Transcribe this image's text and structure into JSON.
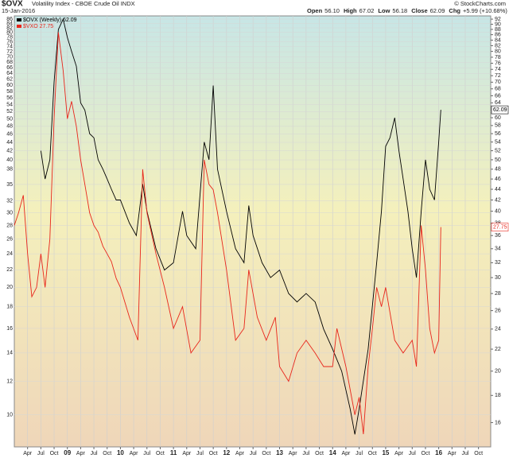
{
  "header": {
    "symbol": "$OVX",
    "description": "Volatility Index - CBOE Crude Oil INDX",
    "date": "15-Jan-2016",
    "quote": [
      {
        "label": "Open",
        "value": "56.10"
      },
      {
        "label": "High",
        "value": "67.02"
      },
      {
        "label": "Low",
        "value": "56.18"
      },
      {
        "label": "Close",
        "value": "62.09"
      },
      {
        "label": "Chg",
        "value": "+5.99 (+10.68%)"
      }
    ],
    "source": "© StockCharts.com"
  },
  "chart_data": {
    "type": "line",
    "log_scale": true,
    "grid": true,
    "legend": "top-left",
    "xlim": [
      2008,
      2016.98
    ],
    "xticks": [
      {
        "value": 2008.25,
        "label": "Apr"
      },
      {
        "value": 2008.5,
        "label": "Jul"
      },
      {
        "value": 2008.75,
        "label": "Oct"
      },
      {
        "value": 2009,
        "label": "09"
      },
      {
        "value": 2009.25,
        "label": "Apr"
      },
      {
        "value": 2009.5,
        "label": "Jul"
      },
      {
        "value": 2009.75,
        "label": "Oct"
      },
      {
        "value": 2010,
        "label": "10"
      },
      {
        "value": 2010.25,
        "label": "Apr"
      },
      {
        "value": 2010.5,
        "label": "Jul"
      },
      {
        "value": 2010.75,
        "label": "Oct"
      },
      {
        "value": 2011,
        "label": "11"
      },
      {
        "value": 2011.25,
        "label": "Apr"
      },
      {
        "value": 2011.5,
        "label": "Jul"
      },
      {
        "value": 2011.75,
        "label": "Oct"
      },
      {
        "value": 2012,
        "label": "12"
      },
      {
        "value": 2012.25,
        "label": "Apr"
      },
      {
        "value": 2012.5,
        "label": "Jul"
      },
      {
        "value": 2012.75,
        "label": "Oct"
      },
      {
        "value": 2013,
        "label": "13"
      },
      {
        "value": 2013.25,
        "label": "Apr"
      },
      {
        "value": 2013.5,
        "label": "Jul"
      },
      {
        "value": 2013.75,
        "label": "Oct"
      },
      {
        "value": 2014,
        "label": "14"
      },
      {
        "value": 2014.25,
        "label": "Apr"
      },
      {
        "value": 2014.5,
        "label": "Jul"
      },
      {
        "value": 2014.75,
        "label": "Oct"
      },
      {
        "value": 2015,
        "label": "15"
      },
      {
        "value": 2015.25,
        "label": "Apr"
      },
      {
        "value": 2015.5,
        "label": "Jul"
      },
      {
        "value": 2015.75,
        "label": "Oct"
      },
      {
        "value": 2016,
        "label": "16"
      },
      {
        "value": 2016.25,
        "label": "Apr"
      },
      {
        "value": 2016.5,
        "label": "Jul"
      },
      {
        "value": 2016.75,
        "label": "Oct"
      }
    ],
    "ylim": [
      8.4,
      87.5
    ],
    "yticks": [
      86,
      84,
      82,
      80,
      78,
      76,
      74,
      72,
      70,
      68,
      66,
      64,
      62,
      60,
      58,
      56,
      54,
      52,
      50,
      48,
      46,
      44,
      42,
      40,
      38,
      35,
      32,
      30,
      28,
      26,
      24,
      22,
      20,
      18,
      16,
      14,
      12,
      10
    ],
    "y2lim": [
      14.4,
      93.3
    ],
    "y2ticks": [
      92,
      90,
      88,
      86,
      84,
      82,
      80,
      78,
      76,
      74,
      72,
      70,
      68,
      66,
      64,
      60,
      58,
      56,
      54,
      52,
      50,
      48,
      46,
      44,
      42,
      40,
      38,
      36,
      34,
      32,
      30,
      28,
      26,
      24,
      22,
      20,
      18,
      16
    ],
    "series": [
      {
        "name": "$OVX (Weekly) 62.09",
        "color": "#000000",
        "axis": "y2",
        "x": [
          2008.5,
          2008.58,
          2008.67,
          2008.75,
          2008.83,
          2008.92,
          2009.0,
          2009.08,
          2009.17,
          2009.25,
          2009.33,
          2009.42,
          2009.5,
          2009.58,
          2009.67,
          2009.75,
          2009.83,
          2009.92,
          2010.0,
          2010.17,
          2010.3,
          2010.42,
          2010.5,
          2010.67,
          2010.83,
          2011.0,
          2011.17,
          2011.25,
          2011.42,
          2011.58,
          2011.67,
          2011.75,
          2011.83,
          2012.0,
          2012.17,
          2012.33,
          2012.42,
          2012.5,
          2012.67,
          2012.83,
          2013.0,
          2013.17,
          2013.33,
          2013.5,
          2013.67,
          2013.83,
          2014.0,
          2014.17,
          2014.33,
          2014.42,
          2014.5,
          2014.67,
          2014.83,
          2014.92,
          2015.0,
          2015.08,
          2015.17,
          2015.25,
          2015.33,
          2015.42,
          2015.5,
          2015.58,
          2015.67,
          2015.75,
          2015.83,
          2015.92,
          2016.0,
          2016.04
        ],
        "values": [
          52,
          46,
          50,
          70,
          88,
          92,
          85,
          80,
          75,
          64,
          62,
          56,
          55,
          50,
          48,
          46,
          44,
          42,
          42,
          38,
          36,
          45,
          40,
          34,
          31,
          32,
          40,
          36,
          34,
          54,
          50,
          69,
          48,
          40,
          34,
          32,
          41,
          36,
          32,
          30,
          31,
          28,
          27,
          28,
          27,
          24,
          22,
          20,
          17,
          15.2,
          17,
          22,
          32,
          40,
          53,
          55,
          60,
          52,
          46,
          40,
          34,
          30,
          40,
          50,
          44,
          42,
          54,
          62.09
        ]
      },
      {
        "name": "$VXO 27.75",
        "color": "#e8251b",
        "axis": "y",
        "x": [
          2008.0,
          2008.08,
          2008.17,
          2008.25,
          2008.33,
          2008.42,
          2008.5,
          2008.58,
          2008.67,
          2008.75,
          2008.83,
          2008.92,
          2009.0,
          2009.08,
          2009.17,
          2009.25,
          2009.33,
          2009.42,
          2009.5,
          2009.58,
          2009.67,
          2009.75,
          2009.83,
          2009.92,
          2010.0,
          2010.17,
          2010.33,
          2010.42,
          2010.5,
          2010.67,
          2010.83,
          2011.0,
          2011.17,
          2011.33,
          2011.5,
          2011.58,
          2011.67,
          2011.75,
          2011.83,
          2012.0,
          2012.17,
          2012.33,
          2012.42,
          2012.58,
          2012.75,
          2012.92,
          2013.0,
          2013.17,
          2013.33,
          2013.5,
          2013.67,
          2013.83,
          2014.0,
          2014.08,
          2014.25,
          2014.42,
          2014.5,
          2014.58,
          2014.67,
          2014.75,
          2014.83,
          2014.92,
          2015.0,
          2015.17,
          2015.33,
          2015.5,
          2015.58,
          2015.67,
          2015.75,
          2015.83,
          2015.92,
          2016.0,
          2016.04
        ],
        "values": [
          28,
          30,
          33,
          24,
          19,
          20,
          24,
          20,
          26,
          50,
          80,
          65,
          50,
          55,
          48,
          40,
          35,
          30,
          28,
          27,
          25,
          24,
          23,
          21,
          20,
          17,
          15,
          38,
          30,
          24,
          20,
          16,
          18,
          14,
          15,
          40,
          35,
          34,
          30,
          22,
          15,
          16,
          22,
          17,
          15,
          17,
          13,
          12,
          14,
          15,
          14,
          13,
          13,
          16,
          13,
          10,
          11,
          9,
          13,
          16,
          20,
          18,
          20,
          15,
          14,
          15,
          13,
          28,
          22,
          16,
          14,
          15,
          27.75
        ]
      }
    ]
  }
}
